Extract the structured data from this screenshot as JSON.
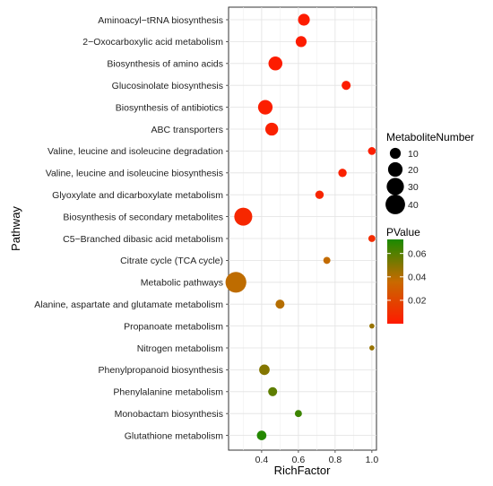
{
  "chart_data": {
    "type": "scatter",
    "title": "",
    "xlabel": "RichFactor",
    "ylabel": "Pathway",
    "xlim": [
      0.22,
      1.025
    ],
    "xticks": [
      0.4,
      0.6,
      0.8,
      1.0
    ],
    "xtick_labels": [
      "0.4",
      "0.6",
      "0.8",
      "1.0"
    ],
    "grid": true,
    "background": "#ffffff",
    "categories": [
      "Aminoacyl−tRNA biosynthesis",
      "2−Oxocarboxylic acid metabolism",
      "Biosynthesis of amino acids",
      "Glucosinolate biosynthesis",
      "Biosynthesis of antibiotics",
      "ABC transporters",
      "Valine, leucine and isoleucine degradation",
      "Valine, leucine and isoleucine biosynthesis",
      "Glyoxylate and dicarboxylate metabolism",
      "Biosynthesis of secondary metabolites",
      "C5−Branched dibasic acid metabolism",
      "Citrate cycle (TCA cycle)",
      "Metabolic pathways",
      "Alanine, aspartate and glutamate metabolism",
      "Propanoate metabolism",
      "Nitrogen metabolism",
      "Phenylpropanoid biosynthesis",
      "Phenylalanine metabolism",
      "Monobactam biosynthesis",
      "Glutathione metabolism"
    ],
    "points": [
      {
        "pathway": "Aminoacyl−tRNA biosynthesis",
        "richfactor": 0.63,
        "metabolites": 12,
        "pvalue": 0.001
      },
      {
        "pathway": "2−Oxocarboxylic acid metabolism",
        "richfactor": 0.615,
        "metabolites": 10,
        "pvalue": 0.001
      },
      {
        "pathway": "Biosynthesis of amino acids",
        "richfactor": 0.475,
        "metabolites": 18,
        "pvalue": 0.001
      },
      {
        "pathway": "Glucosinolate biosynthesis",
        "richfactor": 0.86,
        "metabolites": 6,
        "pvalue": 0.001
      },
      {
        "pathway": "Biosynthesis of antibiotics",
        "richfactor": 0.42,
        "metabolites": 20,
        "pvalue": 0.002
      },
      {
        "pathway": "ABC transporters",
        "richfactor": 0.455,
        "metabolites": 15,
        "pvalue": 0.003
      },
      {
        "pathway": "Valine, leucine and isoleucine degradation",
        "richfactor": 1.0,
        "metabolites": 4,
        "pvalue": 0.002
      },
      {
        "pathway": "Valine, leucine and isoleucine biosynthesis",
        "richfactor": 0.84,
        "metabolites": 5,
        "pvalue": 0.003
      },
      {
        "pathway": "Glyoxylate and dicarboxylate metabolism",
        "richfactor": 0.715,
        "metabolites": 5,
        "pvalue": 0.005
      },
      {
        "pathway": "Biosynthesis of secondary metabolites",
        "richfactor": 0.3,
        "metabolites": 33,
        "pvalue": 0.006
      },
      {
        "pathway": "C5−Branched dibasic acid metabolism",
        "richfactor": 1.0,
        "metabolites": 3,
        "pvalue": 0.008
      },
      {
        "pathway": "Citrate cycle (TCA cycle)",
        "richfactor": 0.755,
        "metabolites": 3,
        "pvalue": 0.037
      },
      {
        "pathway": "Metabolic pathways",
        "richfactor": 0.26,
        "metabolites": 46,
        "pvalue": 0.038
      },
      {
        "pathway": "Alanine, aspartate and glutamate metabolism",
        "richfactor": 0.5,
        "metabolites": 6,
        "pvalue": 0.04
      },
      {
        "pathway": "Propanoate metabolism",
        "richfactor": 1.0,
        "metabolites": 1,
        "pvalue": 0.046
      },
      {
        "pathway": "Nitrogen metabolism",
        "richfactor": 1.0,
        "metabolites": 1,
        "pvalue": 0.046
      },
      {
        "pathway": "Phenylpropanoid biosynthesis",
        "richfactor": 0.415,
        "metabolites": 9,
        "pvalue": 0.05
      },
      {
        "pathway": "Phenylalanine metabolism",
        "richfactor": 0.46,
        "metabolites": 6,
        "pvalue": 0.058
      },
      {
        "pathway": "Monobactam biosynthesis",
        "richfactor": 0.6,
        "metabolites": 3,
        "pvalue": 0.065
      },
      {
        "pathway": "Glutathione metabolism",
        "richfactor": 0.4,
        "metabolites": 7,
        "pvalue": 0.07
      }
    ],
    "size_legend": {
      "title": "MetaboliteNumber",
      "values": [
        10,
        20,
        30,
        40
      ],
      "labels": [
        "10",
        "20",
        "30",
        "40"
      ]
    },
    "color_legend": {
      "title": "PValue",
      "ticks": [
        0.02,
        0.04,
        0.06
      ],
      "labels": [
        "0.02",
        "0.04",
        "0.06"
      ],
      "range": [
        0.0,
        0.072
      ],
      "low_color": "#ff1a00",
      "mid_color": "#c86a00",
      "high_color": "#1a8a00"
    },
    "legend_position": "right"
  }
}
